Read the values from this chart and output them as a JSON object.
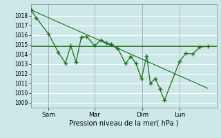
{
  "xlabel": "Pression niveau de la mer( hPa )",
  "bg_color": "#cce8e8",
  "grid_color": "#ffffff",
  "line_color": "#1a6e1a",
  "ylim": [
    1008.5,
    1019.2
  ],
  "yticks": [
    1009,
    1010,
    1011,
    1012,
    1013,
    1014,
    1015,
    1016,
    1017,
    1018
  ],
  "day_labels": [
    "Sam",
    "Mar",
    "Dim",
    "Lun"
  ],
  "day_positions": [
    0.1,
    0.36,
    0.63,
    0.84
  ],
  "xlim": [
    0.0,
    1.05
  ],
  "line1_x": [
    0.0,
    0.03,
    0.1,
    0.155,
    0.195,
    0.225,
    0.255,
    0.285,
    0.315,
    0.36,
    0.395,
    0.425,
    0.455,
    0.49,
    0.535,
    0.565,
    0.595,
    0.625,
    0.655,
    0.675,
    0.705,
    0.73,
    0.755,
    0.84,
    0.875,
    0.915,
    0.955,
    1.0
  ],
  "line1_y": [
    1018.6,
    1017.8,
    1016.1,
    1014.2,
    1013.1,
    1014.9,
    1013.2,
    1015.8,
    1015.85,
    1014.9,
    1015.5,
    1015.2,
    1015.05,
    1014.65,
    1013.05,
    1013.8,
    1013.05,
    1011.5,
    1013.85,
    1011.0,
    1011.5,
    1010.4,
    1009.25,
    1013.25,
    1014.1,
    1014.05,
    1014.75,
    1014.85
  ],
  "line2_x": [
    0.0,
    1.0
  ],
  "line2_y": [
    1018.6,
    1010.5
  ],
  "line3_x": [
    0.0,
    1.05
  ],
  "line3_y": [
    1014.85,
    1014.85
  ]
}
